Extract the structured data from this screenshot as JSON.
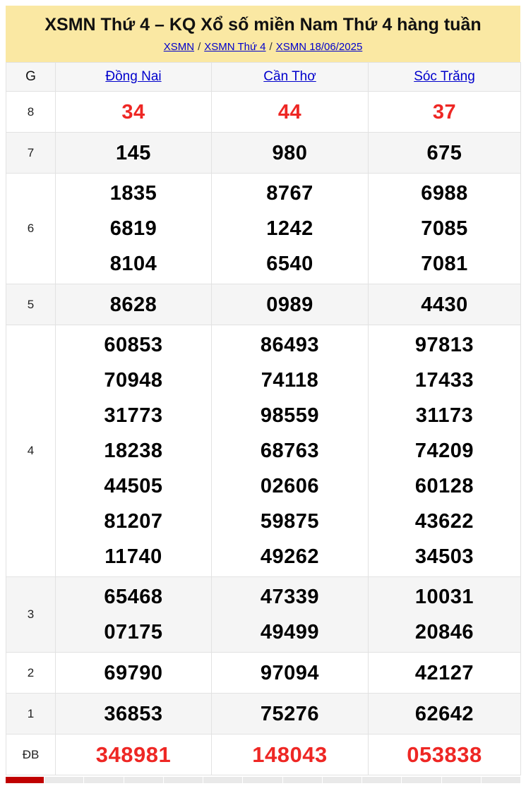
{
  "header": {
    "title": "XSMN Thứ 4 – KQ Xổ số miền Nam Thứ 4 hàng tuần",
    "breadcrumb": [
      {
        "label": "XSMN"
      },
      {
        "label": "XSMN Thứ 4"
      },
      {
        "label": "XSMN 18/06/2025"
      }
    ],
    "separator": "/"
  },
  "results_table": {
    "corner_label": "G",
    "province_columns": [
      "Đồng Nai",
      "Cần Thơ",
      "Sóc Trăng"
    ],
    "rows": [
      {
        "prize": "8",
        "highlight": true,
        "values": [
          [
            "34"
          ],
          [
            "44"
          ],
          [
            "37"
          ]
        ]
      },
      {
        "prize": "7",
        "highlight": false,
        "values": [
          [
            "145"
          ],
          [
            "980"
          ],
          [
            "675"
          ]
        ]
      },
      {
        "prize": "6",
        "highlight": false,
        "values": [
          [
            "1835",
            "6819",
            "8104"
          ],
          [
            "8767",
            "1242",
            "6540"
          ],
          [
            "6988",
            "7085",
            "7081"
          ]
        ]
      },
      {
        "prize": "5",
        "highlight": false,
        "values": [
          [
            "8628"
          ],
          [
            "0989"
          ],
          [
            "4430"
          ]
        ]
      },
      {
        "prize": "4",
        "highlight": false,
        "values": [
          [
            "60853",
            "70948",
            "31773",
            "18238",
            "44505",
            "81207",
            "11740"
          ],
          [
            "86493",
            "74118",
            "98559",
            "68763",
            "02606",
            "59875",
            "49262"
          ],
          [
            "97813",
            "17433",
            "31173",
            "74209",
            "60128",
            "43622",
            "34503"
          ]
        ]
      },
      {
        "prize": "3",
        "highlight": false,
        "values": [
          [
            "65468",
            "07175"
          ],
          [
            "47339",
            "49499"
          ],
          [
            "10031",
            "20846"
          ]
        ]
      },
      {
        "prize": "2",
        "highlight": false,
        "values": [
          [
            "69790"
          ],
          [
            "97094"
          ],
          [
            "42127"
          ]
        ]
      },
      {
        "prize": "1",
        "highlight": false,
        "values": [
          [
            "36853"
          ],
          [
            "75276"
          ],
          [
            "62642"
          ]
        ]
      },
      {
        "prize": "ĐB",
        "highlight": true,
        "values": [
          [
            "348981"
          ],
          [
            "148043"
          ],
          [
            "053838"
          ]
        ]
      }
    ]
  },
  "next_table_peek": {
    "gray_cell_count": 12
  },
  "colors": {
    "masthead_bg": "#fae8a3",
    "link_blue": "#0000cc",
    "highlight_red": "#ee2724",
    "stripe_gray": "#f5f5f5",
    "peek_red": "#c00000"
  }
}
